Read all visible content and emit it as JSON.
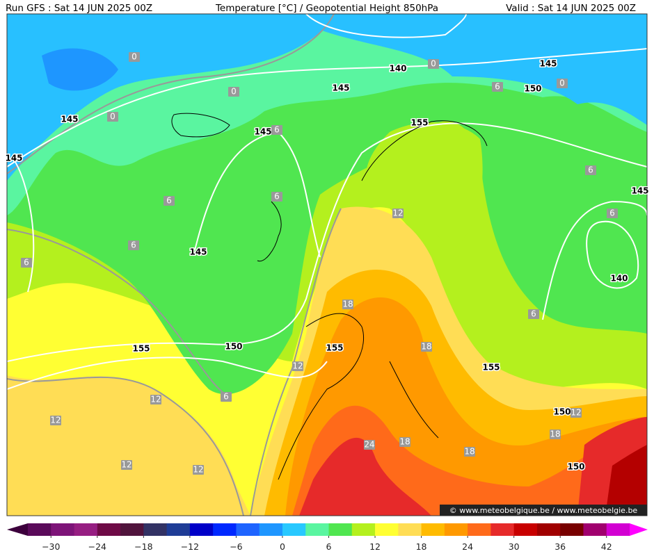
{
  "header": {
    "run": "Run GFS : Sat 14 JUN 2025 00Z",
    "title": "Temperature [°C] / Geopotential Height 850hPa",
    "valid": "Valid : Sat 14 JUN 2025 00Z"
  },
  "map": {
    "height_labels": [
      "145",
      "145",
      "145",
      "145",
      "145",
      "145",
      "145",
      "140",
      "140",
      "150",
      "150",
      "150",
      "150",
      "155",
      "155",
      "155",
      "155"
    ],
    "temperature_labels": [
      "0",
      "0",
      "0",
      "0",
      "0",
      "6",
      "6",
      "6",
      "6",
      "6",
      "6",
      "6",
      "6",
      "6",
      "6",
      "12",
      "12",
      "12",
      "12",
      "12",
      "12",
      "12",
      "18",
      "18",
      "18",
      "18",
      "18",
      "24"
    ]
  },
  "watermark": "© www.meteobelgique.be / www.meteobelgie.be",
  "colorbar": {
    "range": [
      -33,
      45
    ],
    "under_color": "#3c003c",
    "over_color": "#ff00ff",
    "colors": [
      "#5a0a5a",
      "#7d1478",
      "#961e82",
      "#6e0a46",
      "#50143c",
      "#323264",
      "#1e3c96",
      "#0000c8",
      "#0028ff",
      "#1e64ff",
      "#1e96ff",
      "#28c8ff",
      "#5af5a0",
      "#50e650",
      "#b4f01e",
      "#ffff33",
      "#ffdd55",
      "#ffbb00",
      "#ff9900",
      "#ff6a1a",
      "#e62a2a",
      "#c80000",
      "#a00000",
      "#780000",
      "#a0006e",
      "#d200d2"
    ],
    "ticks": [
      {
        "value": -30,
        "label": "−30"
      },
      {
        "value": -24,
        "label": "−24"
      },
      {
        "value": -18,
        "label": "−18"
      },
      {
        "value": -12,
        "label": "−12"
      },
      {
        "value": -6,
        "label": "−6"
      },
      0,
      6,
      12,
      18,
      24,
      30,
      36,
      42
    ]
  }
}
